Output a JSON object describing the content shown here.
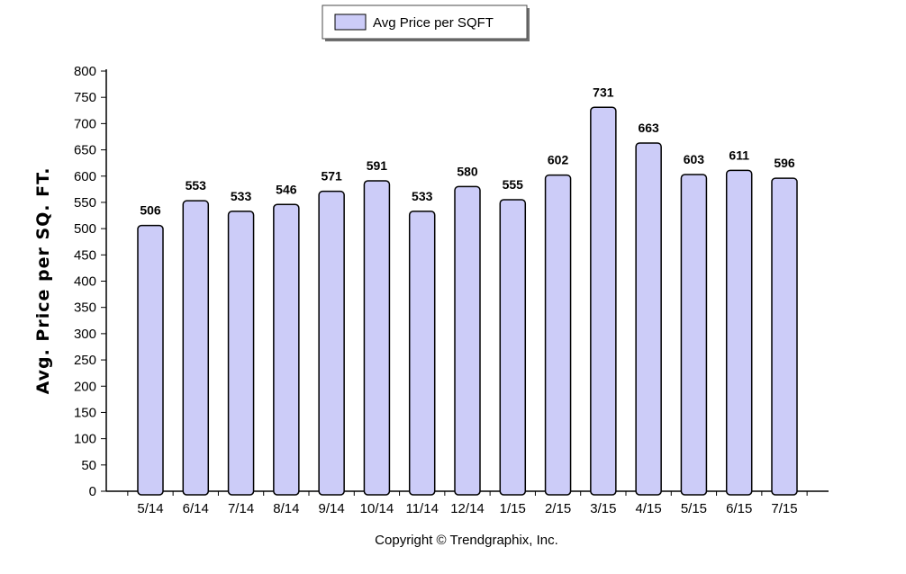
{
  "chart_data": {
    "type": "bar",
    "categories": [
      "5/14",
      "6/14",
      "7/14",
      "8/14",
      "9/14",
      "10/14",
      "11/14",
      "12/14",
      "1/15",
      "2/15",
      "3/15",
      "4/15",
      "5/15",
      "6/15",
      "7/15"
    ],
    "series": [
      {
        "name": "Avg Price per SQFT",
        "values": [
          506,
          553,
          533,
          546,
          571,
          591,
          533,
          580,
          555,
          602,
          731,
          663,
          603,
          611,
          596
        ]
      }
    ],
    "xlabel": "",
    "ylabel": "Avg. Price per SQ. FT.",
    "ylim": [
      0,
      800
    ],
    "yticks": [
      0,
      50,
      100,
      150,
      200,
      250,
      300,
      350,
      400,
      450,
      500,
      550,
      600,
      650,
      700,
      750,
      800
    ],
    "grid": false,
    "legend_position": "top-center",
    "bar_color": "#ccccf8",
    "bar_stroke": "#000000"
  },
  "footer": {
    "copyright": "Copyright © Trendgraphix, Inc."
  }
}
